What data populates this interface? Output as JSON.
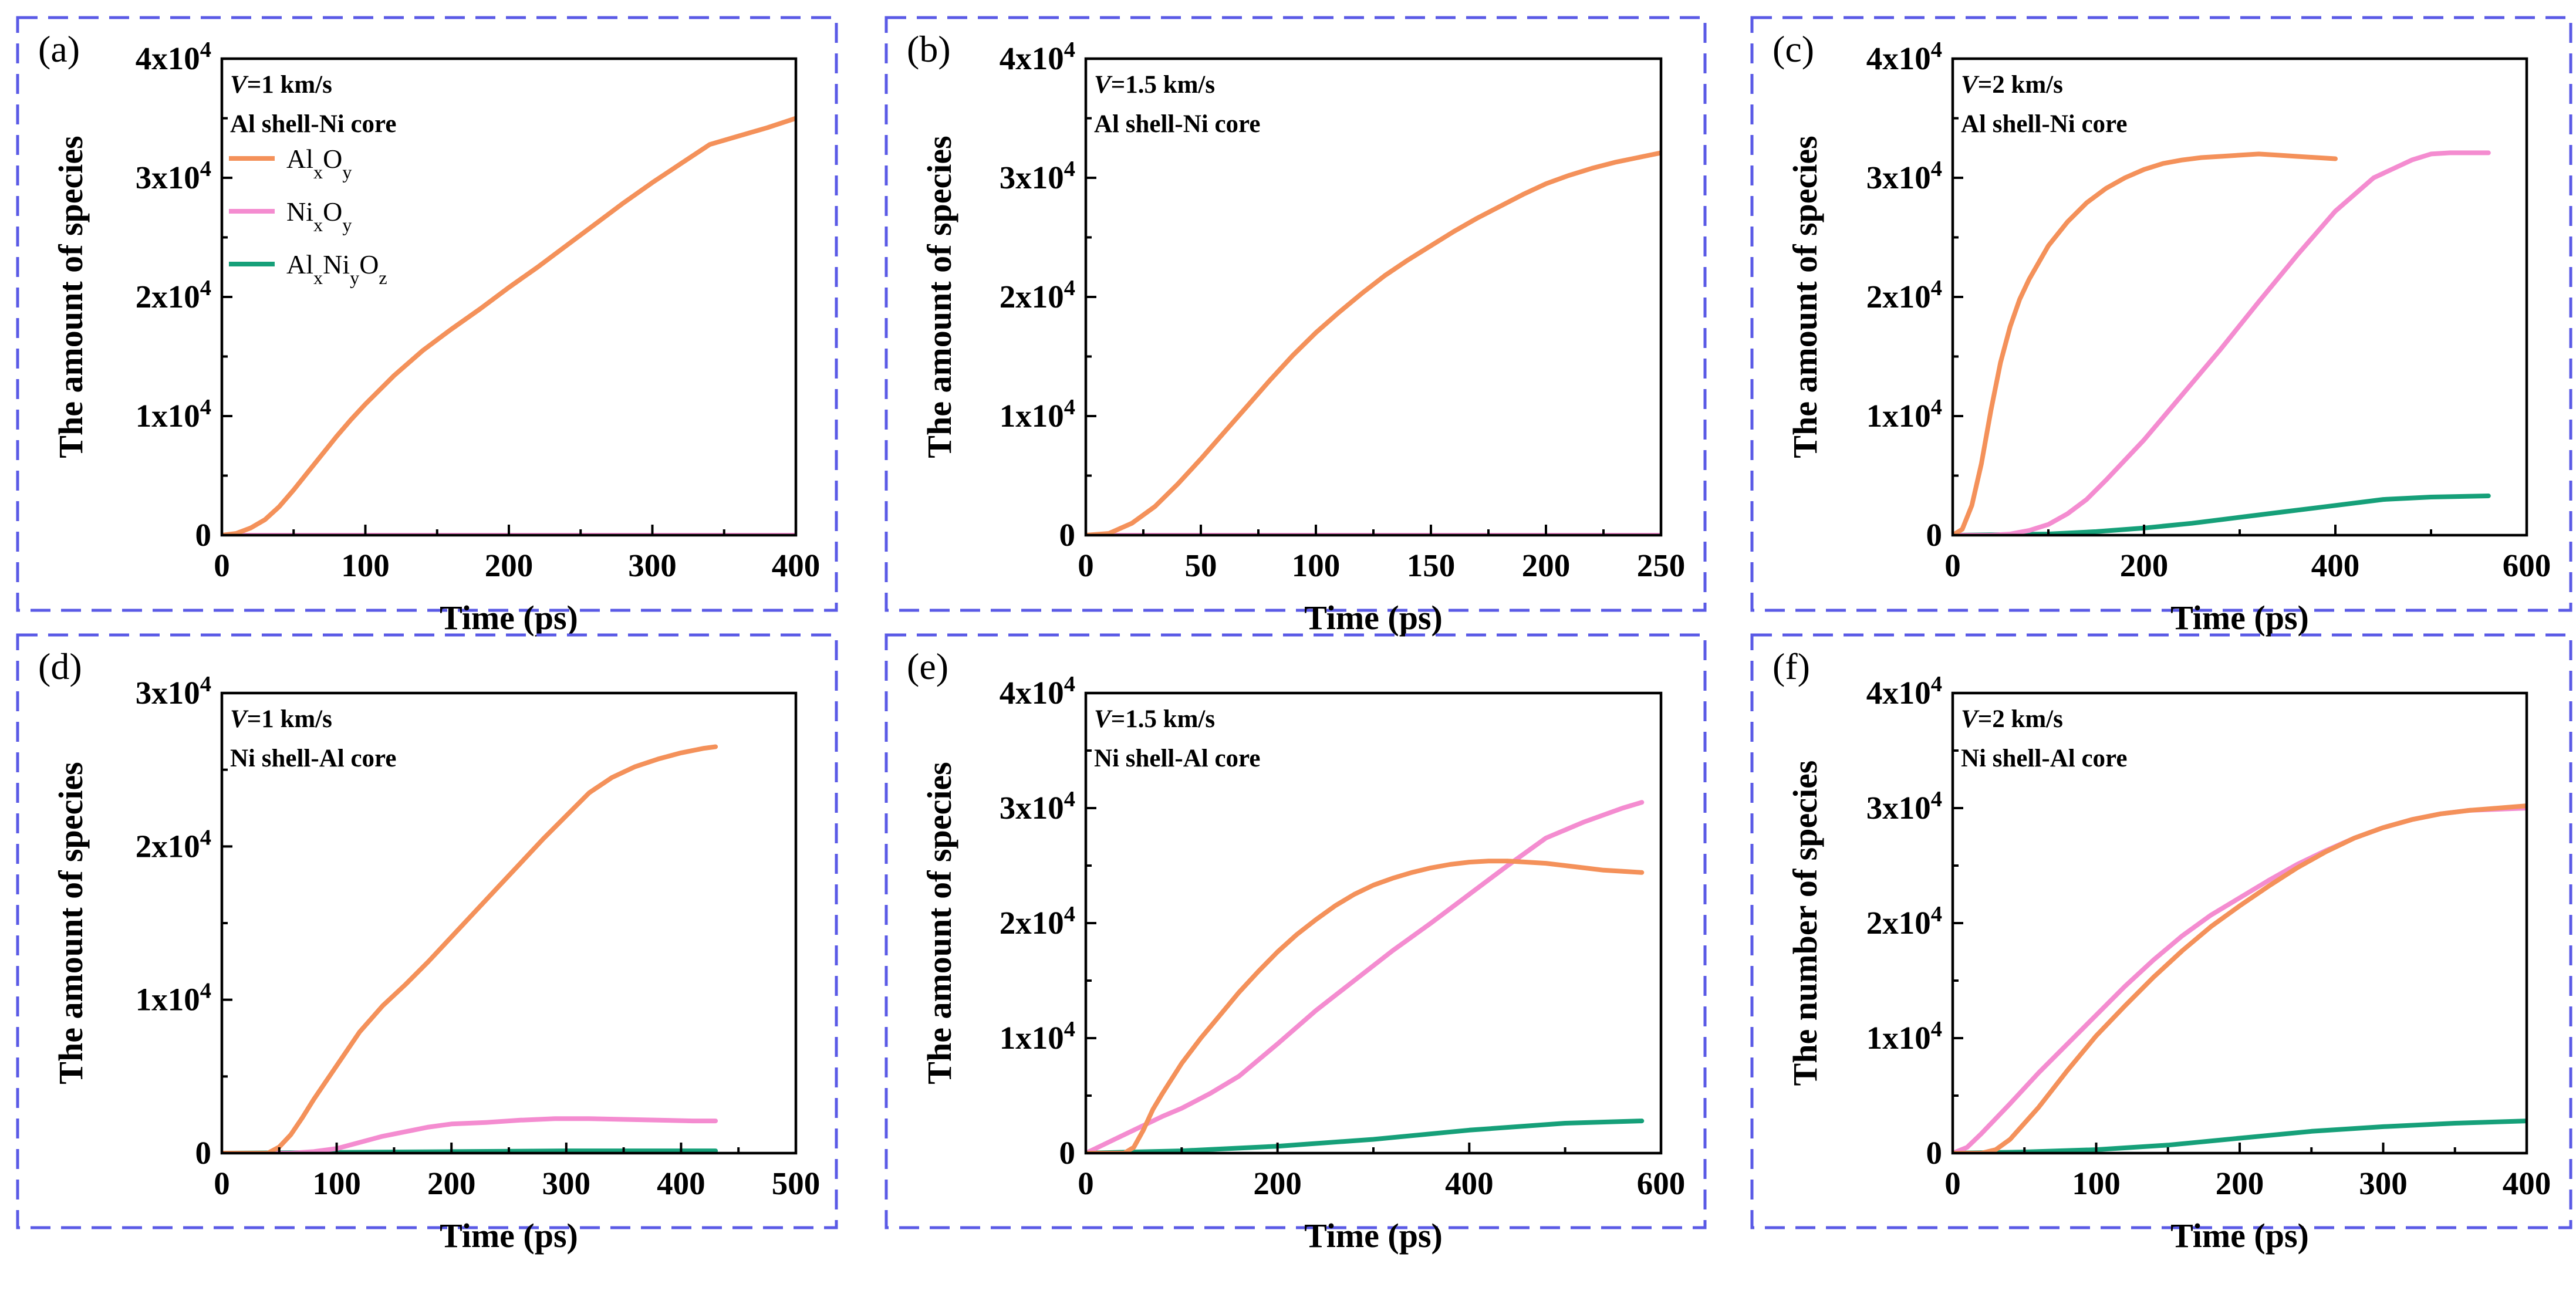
{
  "colors": {
    "AlxOy": "#f4915a",
    "NixOy": "#f48cd0",
    "AlxNiyOz": "#16a079",
    "frame": "#5a5ae6"
  },
  "legend": [
    {
      "key": "AlxOy",
      "parts": [
        [
          "Al",
          ""
        ],
        [
          "x",
          "sub"
        ],
        [
          "O",
          ""
        ],
        [
          "y",
          "sub"
        ]
      ]
    },
    {
      "key": "NixOy",
      "parts": [
        [
          "Ni",
          ""
        ],
        [
          "x",
          "sub"
        ],
        [
          "O",
          ""
        ],
        [
          "y",
          "sub"
        ]
      ]
    },
    {
      "key": "AlxNiyOz",
      "parts": [
        [
          "Al",
          ""
        ],
        [
          "x",
          "sub"
        ],
        [
          "Ni",
          ""
        ],
        [
          "y",
          "sub"
        ],
        [
          "O",
          ""
        ],
        [
          "z",
          "sub"
        ]
      ]
    }
  ],
  "chart_data": [
    {
      "panel": "(a)",
      "type": "line",
      "velocity": "=1 km/s",
      "config": "Al shell-Ni core",
      "xlabel": "Time (ps)",
      "ylabel": "The amount of species",
      "xlim": [
        0,
        400
      ],
      "xticks": [
        "0",
        "100",
        "200",
        "300",
        "400"
      ],
      "ylim": [
        0,
        40000
      ],
      "yticks": [
        [
          "0",
          ""
        ],
        [
          "1x10",
          "4"
        ],
        [
          "2x10",
          "4"
        ],
        [
          "3x10",
          "4"
        ],
        [
          "4x10",
          "4"
        ]
      ],
      "legend": true,
      "series": [
        {
          "name": "AlxOy",
          "x": [
            0,
            10,
            20,
            30,
            40,
            50,
            60,
            70,
            80,
            90,
            100,
            120,
            140,
            160,
            180,
            200,
            220,
            240,
            260,
            280,
            300,
            320,
            340,
            360,
            380,
            400
          ],
          "y": [
            0,
            150,
            600,
            1300,
            2400,
            3800,
            5300,
            6800,
            8300,
            9700,
            11000,
            13400,
            15500,
            17300,
            19000,
            20800,
            22500,
            24300,
            26100,
            27900,
            29600,
            31200,
            32800,
            33500,
            34200,
            35000
          ]
        },
        {
          "name": "NixOy",
          "x": [
            0,
            400
          ],
          "y": [
            0,
            0
          ]
        },
        {
          "name": "AlxNiyOz",
          "x": [
            0,
            400
          ],
          "y": [
            0,
            0
          ]
        }
      ]
    },
    {
      "panel": "(b)",
      "type": "line",
      "velocity": "=1.5 km/s",
      "config": "Al shell-Ni core",
      "xlabel": "Time (ps)",
      "ylabel": "The amount of species",
      "xlim": [
        0,
        250
      ],
      "xticks": [
        "0",
        "50",
        "100",
        "150",
        "200",
        "250"
      ],
      "ylim": [
        0,
        40000
      ],
      "yticks": [
        [
          "0",
          ""
        ],
        [
          "1x10",
          "4"
        ],
        [
          "2x10",
          "4"
        ],
        [
          "3x10",
          "4"
        ],
        [
          "4x10",
          "4"
        ]
      ],
      "legend": false,
      "series": [
        {
          "name": "AlxOy",
          "x": [
            0,
            10,
            20,
            30,
            40,
            50,
            60,
            70,
            80,
            90,
            100,
            110,
            120,
            130,
            140,
            150,
            160,
            170,
            180,
            190,
            200,
            210,
            220,
            230,
            240,
            250
          ],
          "y": [
            0,
            150,
            1000,
            2400,
            4300,
            6400,
            8600,
            10800,
            13000,
            15100,
            17000,
            18700,
            20300,
            21800,
            23100,
            24300,
            25500,
            26600,
            27600,
            28600,
            29500,
            30200,
            30800,
            31300,
            31700,
            32100
          ]
        },
        {
          "name": "NixOy",
          "x": [
            0,
            250
          ],
          "y": [
            0,
            0
          ]
        },
        {
          "name": "AlxNiyOz",
          "x": [
            0,
            250
          ],
          "y": [
            0,
            0
          ]
        }
      ]
    },
    {
      "panel": "(c)",
      "type": "line",
      "velocity": "=2 km/s",
      "config": "Al shell-Ni core",
      "xlabel": "Time (ps)",
      "ylabel": "The amount of species",
      "xlim": [
        0,
        600
      ],
      "xticks": [
        "0",
        "200",
        "400",
        "600"
      ],
      "ylim": [
        0,
        40000
      ],
      "yticks": [
        [
          "0",
          ""
        ],
        [
          "1x10",
          "4"
        ],
        [
          "2x10",
          "4"
        ],
        [
          "3x10",
          "4"
        ],
        [
          "4x10",
          "4"
        ]
      ],
      "legend": false,
      "series": [
        {
          "name": "AlxOy",
          "x": [
            0,
            10,
            20,
            30,
            40,
            50,
            60,
            70,
            80,
            100,
            120,
            140,
            160,
            180,
            200,
            220,
            240,
            260,
            280,
            300,
            320,
            340,
            360,
            380,
            400
          ],
          "y": [
            0,
            500,
            2500,
            6000,
            10500,
            14500,
            17500,
            19800,
            21500,
            24300,
            26300,
            27900,
            29100,
            30000,
            30700,
            31200,
            31500,
            31700,
            31800,
            31900,
            32000,
            31900,
            31800,
            31700,
            31600
          ]
        },
        {
          "name": "NixOy",
          "x": [
            0,
            40,
            60,
            80,
            100,
            120,
            140,
            160,
            200,
            240,
            280,
            320,
            360,
            400,
            440,
            480,
            500,
            520,
            540,
            560
          ],
          "y": [
            0,
            0,
            100,
            400,
            900,
            1800,
            3000,
            4600,
            8000,
            11800,
            15600,
            19600,
            23500,
            27200,
            30000,
            31500,
            32000,
            32100,
            32100,
            32100
          ]
        },
        {
          "name": "AlxNiyOz",
          "x": [
            0,
            100,
            150,
            200,
            250,
            300,
            350,
            400,
            450,
            500,
            560
          ],
          "y": [
            0,
            100,
            300,
            600,
            1000,
            1500,
            2000,
            2500,
            3000,
            3200,
            3300
          ]
        }
      ]
    },
    {
      "panel": "(d)",
      "type": "line",
      "velocity": "=1 km/s",
      "config": "Ni shell-Al core",
      "xlabel": "Time (ps)",
      "ylabel": "The amount of species",
      "xlim": [
        0,
        500
      ],
      "xticks": [
        "0",
        "100",
        "200",
        "300",
        "400",
        "500"
      ],
      "ylim": [
        0,
        30000
      ],
      "yticks": [
        [
          "0",
          ""
        ],
        [
          "1x10",
          "4"
        ],
        [
          "2x10",
          "4"
        ],
        [
          "3x10",
          "4"
        ]
      ],
      "legend": false,
      "series": [
        {
          "name": "AlxOy",
          "x": [
            0,
            40,
            50,
            60,
            70,
            80,
            90,
            100,
            120,
            140,
            160,
            180,
            200,
            220,
            240,
            260,
            280,
            300,
            320,
            340,
            360,
            380,
            400,
            420,
            430
          ],
          "y": [
            0,
            0,
            400,
            1200,
            2300,
            3500,
            4600,
            5700,
            7900,
            9600,
            11000,
            12500,
            14100,
            15700,
            17300,
            18900,
            20500,
            22000,
            23500,
            24500,
            25200,
            25700,
            26100,
            26400,
            26500
          ]
        },
        {
          "name": "NixOy",
          "x": [
            0,
            60,
            80,
            100,
            120,
            140,
            160,
            180,
            200,
            230,
            260,
            290,
            320,
            350,
            380,
            410,
            430
          ],
          "y": [
            0,
            0,
            100,
            300,
            700,
            1100,
            1400,
            1700,
            1900,
            2000,
            2150,
            2250,
            2250,
            2200,
            2150,
            2100,
            2100
          ]
        },
        {
          "name": "AlxNiyOz",
          "x": [
            0,
            100,
            200,
            300,
            430
          ],
          "y": [
            0,
            50,
            100,
            150,
            150
          ]
        }
      ]
    },
    {
      "panel": "(e)",
      "type": "line",
      "velocity": "=1.5 km/s",
      "config": "Ni shell-Al core",
      "xlabel": "Time (ps)",
      "ylabel": "The amount of species",
      "xlim": [
        0,
        600
      ],
      "xticks": [
        "0",
        "200",
        "400",
        "600"
      ],
      "ylim": [
        0,
        40000
      ],
      "yticks": [
        [
          "0",
          ""
        ],
        [
          "1x10",
          "4"
        ],
        [
          "2x10",
          "4"
        ],
        [
          "3x10",
          "4"
        ],
        [
          "4x10",
          "4"
        ]
      ],
      "legend": false,
      "series": [
        {
          "name": "AlxOy",
          "x": [
            0,
            40,
            50,
            60,
            70,
            80,
            100,
            120,
            140,
            160,
            180,
            200,
            220,
            240,
            260,
            280,
            300,
            320,
            340,
            360,
            380,
            400,
            420,
            440,
            460,
            480,
            500,
            520,
            540,
            560,
            580
          ],
          "y": [
            0,
            0,
            500,
            2000,
            3800,
            5200,
            7800,
            10000,
            12000,
            14000,
            15800,
            17500,
            19000,
            20300,
            21500,
            22500,
            23300,
            23900,
            24400,
            24800,
            25100,
            25300,
            25400,
            25400,
            25300,
            25200,
            25000,
            24800,
            24600,
            24500,
            24400
          ]
        },
        {
          "name": "NixOy",
          "x": [
            0,
            20,
            40,
            60,
            80,
            100,
            130,
            160,
            200,
            240,
            280,
            320,
            360,
            400,
            440,
            480,
            520,
            560,
            580
          ],
          "y": [
            0,
            800,
            1600,
            2400,
            3200,
            3900,
            5200,
            6700,
            9500,
            12400,
            15000,
            17600,
            20000,
            22500,
            25000,
            27400,
            28800,
            30000,
            30500
          ]
        },
        {
          "name": "AlxNiyOz",
          "x": [
            0,
            100,
            200,
            300,
            400,
            500,
            580
          ],
          "y": [
            0,
            200,
            600,
            1200,
            2000,
            2600,
            2800
          ]
        }
      ]
    },
    {
      "panel": "(f)",
      "type": "line",
      "velocity": "=2 km/s",
      "config": "Ni shell-Al core",
      "xlabel": "Time (ps)",
      "ylabel": "The number of species",
      "xlim": [
        0,
        400
      ],
      "xticks": [
        "0",
        "100",
        "200",
        "300",
        "400"
      ],
      "ylim": [
        0,
        40000
      ],
      "yticks": [
        [
          "0",
          ""
        ],
        [
          "1x10",
          "4"
        ],
        [
          "2x10",
          "4"
        ],
        [
          "3x10",
          "4"
        ],
        [
          "4x10",
          "4"
        ]
      ],
      "legend": false,
      "series": [
        {
          "name": "AlxOy",
          "x": [
            0,
            20,
            30,
            40,
            60,
            80,
            100,
            120,
            140,
            160,
            180,
            200,
            220,
            240,
            260,
            280,
            300,
            320,
            340,
            360,
            380,
            400
          ],
          "y": [
            0,
            0,
            300,
            1200,
            4000,
            7200,
            10200,
            12800,
            15300,
            17600,
            19700,
            21500,
            23200,
            24800,
            26200,
            27400,
            28300,
            29000,
            29500,
            29800,
            30000,
            30200
          ]
        },
        {
          "name": "NixOy",
          "x": [
            0,
            10,
            20,
            40,
            60,
            80,
            100,
            120,
            140,
            160,
            180,
            200,
            220,
            240,
            260,
            280,
            300,
            320,
            340,
            360,
            380,
            400
          ],
          "y": [
            0,
            500,
            1700,
            4300,
            7000,
            9500,
            12000,
            14500,
            16800,
            18900,
            20700,
            22200,
            23700,
            25100,
            26300,
            27400,
            28300,
            29000,
            29500,
            29800,
            29900,
            30000
          ]
        },
        {
          "name": "AlxNiyOz",
          "x": [
            0,
            50,
            100,
            150,
            200,
            250,
            300,
            350,
            400
          ],
          "y": [
            0,
            100,
            300,
            700,
            1300,
            1900,
            2300,
            2600,
            2800
          ]
        }
      ]
    }
  ]
}
